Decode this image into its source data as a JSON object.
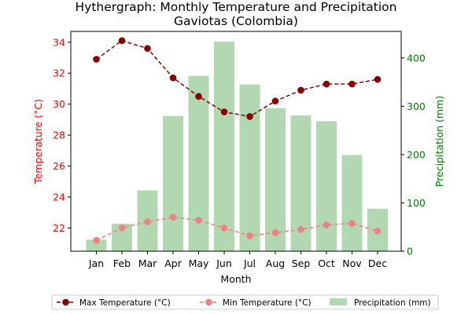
{
  "chart_data": {
    "type": "bar+line",
    "title": "Hythergraph: Monthly Temperature and Precipitation",
    "subtitle": "Gaviotas (Colombia)",
    "xlabel": "Month",
    "ylabel_left": "Temperature (°C)",
    "ylabel_right": "Precipitation (mm)",
    "categories": [
      "Jan",
      "Feb",
      "Mar",
      "Apr",
      "May",
      "Jun",
      "Jul",
      "Aug",
      "Sep",
      "Oct",
      "Nov",
      "Dec"
    ],
    "ylim_left": [
      20.5,
      34.7
    ],
    "ylim_right": [
      0,
      455
    ],
    "yticks_left": [
      22,
      24,
      26,
      28,
      30,
      32,
      34
    ],
    "yticks_right": [
      0,
      100,
      200,
      300,
      400
    ],
    "series": [
      {
        "name": "Max Temperature (°C)",
        "axis": "left",
        "kind": "line",
        "color": "#8b0000",
        "style": "dashed",
        "values": [
          32.9,
          34.1,
          33.6,
          31.7,
          30.5,
          29.5,
          29.2,
          30.2,
          30.9,
          31.3,
          31.3,
          31.6
        ]
      },
      {
        "name": "Min Temperature (°C)",
        "axis": "left",
        "kind": "line",
        "color": "#f08080",
        "style": "dashed",
        "values": [
          21.2,
          22.0,
          22.4,
          22.7,
          22.5,
          22.0,
          21.5,
          21.7,
          21.9,
          22.2,
          22.3,
          21.8
        ]
      },
      {
        "name": "Precipitation (mm)",
        "axis": "right",
        "kind": "bar",
        "color": "#b2d8b2",
        "values": [
          24,
          57,
          126,
          280,
          363,
          434,
          345,
          296,
          281,
          269,
          199,
          88
        ]
      }
    ],
    "axis_colors": {
      "left": "#ff0000",
      "right": "#008000"
    },
    "grid": false,
    "legend_position": "bottom"
  }
}
